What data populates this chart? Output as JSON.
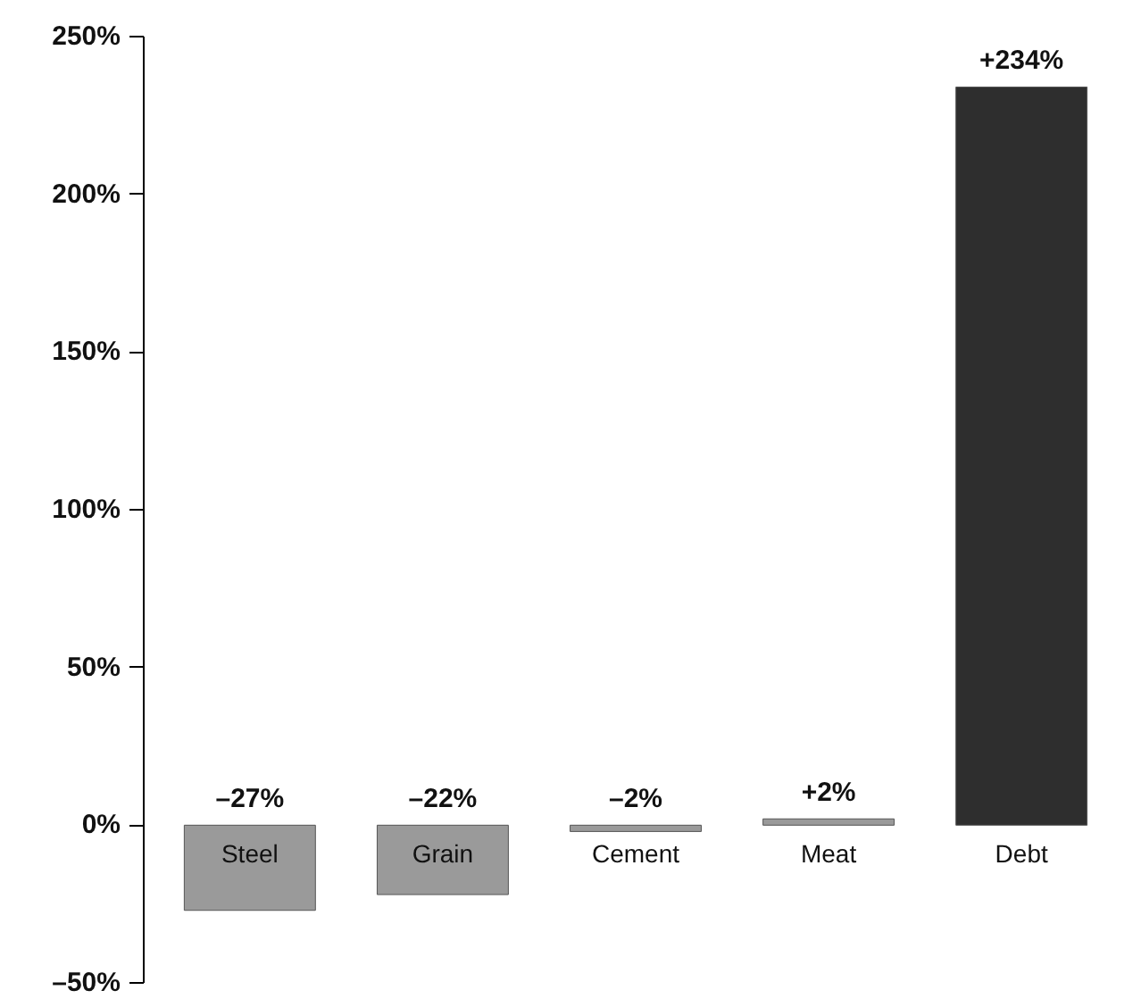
{
  "chart_data": {
    "type": "bar",
    "categories": [
      "Steel",
      "Grain",
      "Cement",
      "Meat",
      "Debt"
    ],
    "values": [
      -27,
      -22,
      -2,
      2,
      234
    ],
    "colors": [
      "#9a9a9a",
      "#9a9a9a",
      "#9a9a9a",
      "#9a9a9a",
      "#2e2e2e"
    ],
    "value_labels": [
      "–27%",
      "–22%",
      "–2%",
      "+2%",
      "+234%"
    ],
    "ylim": [
      -50,
      250
    ],
    "yticks": [
      {
        "value": -50,
        "label": "–50%"
      },
      {
        "value": 0,
        "label": "0%"
      },
      {
        "value": 50,
        "label": "50%"
      },
      {
        "value": 100,
        "label": "100%"
      },
      {
        "value": 150,
        "label": "150%"
      },
      {
        "value": 200,
        "label": "200%"
      },
      {
        "value": 250,
        "label": "250%"
      }
    ],
    "grid": false
  }
}
